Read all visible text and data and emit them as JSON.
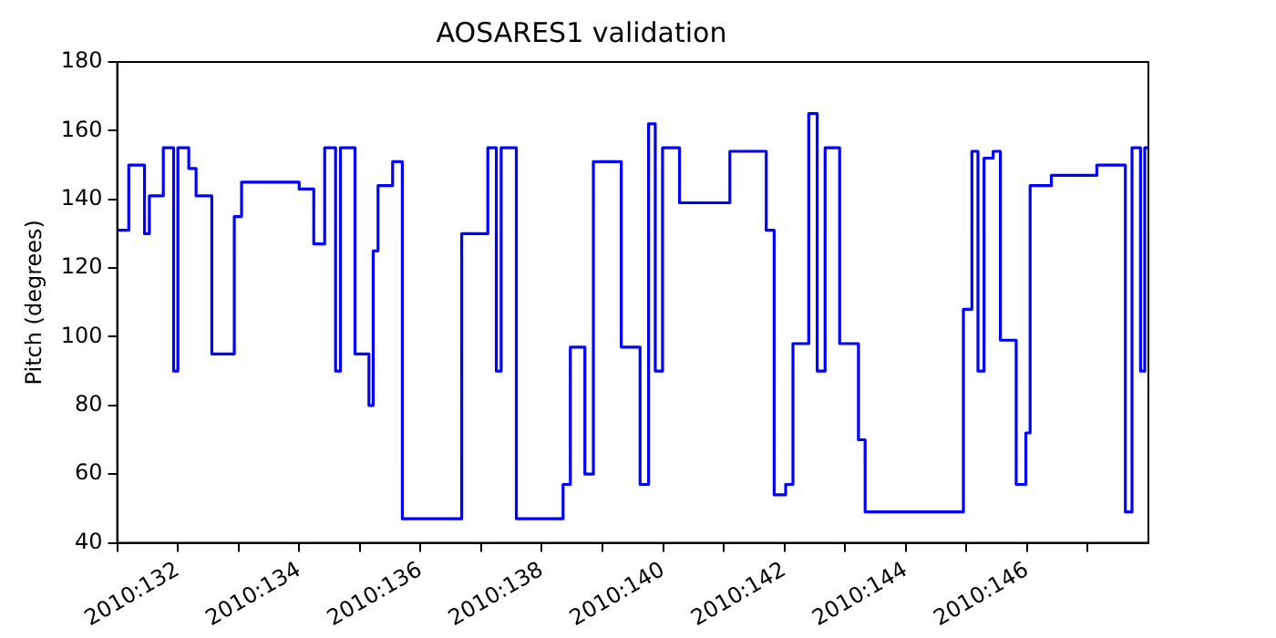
{
  "chart_data": {
    "type": "step",
    "title": "AOSARES1 validation",
    "ylabel": "Pitch (degrees)",
    "x": [
      "2010-05-11T00:00",
      "2010-05-11T04:34",
      "2010-05-11T10:48",
      "2010-05-11T12:43",
      "2010-05-11T18:14",
      "2010-05-11T22:19",
      "2010-05-12T00:00",
      "2010-05-12T04:19",
      "2010-05-12T07:12",
      "2010-05-12T13:26",
      "2010-05-12T22:19",
      "2010-05-13T01:12",
      "2010-05-14T00:00",
      "2010-05-14T05:46",
      "2010-05-14T10:05",
      "2010-05-14T14:24",
      "2010-05-14T16:19",
      "2010-05-14T22:05",
      "2010-05-15T03:36",
      "2010-05-15T05:17",
      "2010-05-15T07:12",
      "2010-05-15T12:58",
      "2010-05-15T16:48",
      "2010-05-16T16:19",
      "2010-05-17T02:38",
      "2010-05-17T06:00",
      "2010-05-17T07:55",
      "2010-05-17T13:55",
      "2010-05-18T08:24",
      "2010-05-18T11:17",
      "2010-05-18T17:02",
      "2010-05-18T20:24",
      "2010-05-19T07:26",
      "2010-05-19T14:53",
      "2010-05-19T18:14",
      "2010-05-19T20:53",
      "2010-05-19T23:46",
      "2010-05-20T06:29",
      "2010-05-21T02:24",
      "2010-05-21T16:48",
      "2010-05-21T19:55",
      "2010-05-22T00:29",
      "2010-05-22T03:22",
      "2010-05-22T09:36",
      "2010-05-22T12:58",
      "2010-05-22T16:05",
      "2010-05-22T21:50",
      "2010-05-23T05:17",
      "2010-05-23T07:55",
      "2010-05-24T22:48",
      "2010-05-25T02:10",
      "2010-05-25T04:34",
      "2010-05-25T06:58",
      "2010-05-25T10:34",
      "2010-05-25T13:26",
      "2010-05-25T19:41",
      "2010-05-25T23:31",
      "2010-05-26T01:12",
      "2010-05-26T09:36",
      "2010-05-27T03:36",
      "2010-05-27T14:53",
      "2010-05-27T17:31",
      "2010-05-27T20:53",
      "2010-05-27T22:34",
      "2010-05-28T00:00"
    ],
    "series": [
      {
        "color": "#0000ff",
        "values": [
          131,
          150,
          130,
          141,
          155,
          90,
          155,
          149,
          141,
          95,
          135,
          145,
          143,
          127,
          155,
          90,
          155,
          95,
          80,
          125,
          144,
          151,
          47,
          130,
          155,
          90,
          155,
          47,
          57,
          97,
          60,
          151,
          97,
          57,
          162,
          90,
          155,
          139,
          154,
          131,
          54,
          57,
          98,
          165,
          90,
          155,
          98,
          70,
          49,
          108,
          154,
          90,
          152,
          154,
          99,
          57,
          72,
          144,
          147,
          150,
          49,
          155,
          90,
          155,
          155
        ]
      }
    ],
    "xlim": [
      "2010-05-11",
      "2010-05-28"
    ],
    "xticks": [
      {
        "value": "2010-05-11",
        "label": null
      },
      {
        "value": "2010-05-12",
        "label": "2010:132"
      },
      {
        "value": "2010-05-13",
        "label": null
      },
      {
        "value": "2010-05-14",
        "label": "2010:134"
      },
      {
        "value": "2010-05-15",
        "label": null
      },
      {
        "value": "2010-05-16",
        "label": "2010:136"
      },
      {
        "value": "2010-05-17",
        "label": null
      },
      {
        "value": "2010-05-18",
        "label": "2010:138"
      },
      {
        "value": "2010-05-19",
        "label": null
      },
      {
        "value": "2010-05-20",
        "label": "2010:140"
      },
      {
        "value": "2010-05-21",
        "label": null
      },
      {
        "value": "2010-05-22",
        "label": "2010:142"
      },
      {
        "value": "2010-05-23",
        "label": null
      },
      {
        "value": "2010-05-24",
        "label": "2010:144"
      },
      {
        "value": "2010-05-25",
        "label": null
      },
      {
        "value": "2010-05-26",
        "label": "2010:146"
      },
      {
        "value": "2010-05-27",
        "label": null
      }
    ],
    "ylim": [
      40,
      180
    ],
    "yticks": [
      40,
      60,
      80,
      100,
      120,
      140,
      160,
      180
    ],
    "grid": false,
    "legend": false,
    "marker": "none",
    "line_style": "solid"
  }
}
